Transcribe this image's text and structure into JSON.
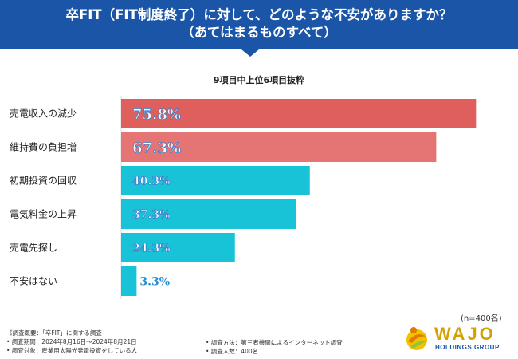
{
  "header": {
    "line1": "卒FIT（FIT制度終了）に対して、どのような不安がありますか？",
    "line2": "（あてはまるものすべて）"
  },
  "subtitle": "9項目中上位6項目抜粋",
  "chart_data": {
    "type": "bar",
    "orientation": "horizontal",
    "title": "卒FIT（FIT制度終了）に対して、どのような不安がありますか？（あてはまるものすべて）",
    "subtitle": "9項目中上位6項目抜粋",
    "categories": [
      "売電収入の減少",
      "維持費の負担増",
      "初期投資の回収",
      "電気料金の上昇",
      "売電先探し",
      "不安はない"
    ],
    "values": [
      75.8,
      67.3,
      40.3,
      37.3,
      24.3,
      3.3
    ],
    "value_labels": [
      "75.8%",
      "67.3%",
      "40.3%",
      "37.3%",
      "24.3%",
      "3.3%"
    ],
    "colors": [
      "#de5f5c",
      "#e57474",
      "#18c3d8",
      "#18c3d8",
      "#18c3d8",
      "#18c3d8"
    ],
    "xlim": [
      0,
      80
    ],
    "xlabel": "",
    "ylabel": ""
  },
  "sample_size": "(n=400名)",
  "footnotes": {
    "survey_overview": "《調査概要：「卒FIT」に関する調査",
    "period": "• 調査期間：2024年8月16日〜2024年8月21日",
    "target": "• 調査対象：産業用太陽光発電投資をしている人",
    "method": "• 調査方法：第三者機関によるインターネット調査",
    "count": "• 調査人数：400名"
  },
  "logo": {
    "name": "WAJO",
    "sub": "HOLDINGS GROUP"
  }
}
